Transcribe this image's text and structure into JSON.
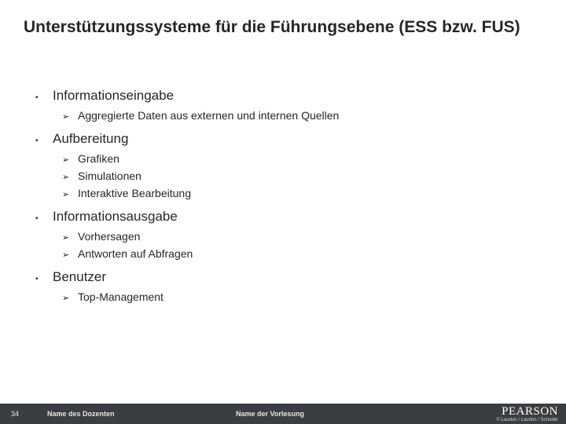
{
  "title": "Unterstützungssysteme für die Führungsebene (ESS bzw. FUS)",
  "sections": [
    {
      "heading": "Informationseingabe",
      "items": [
        "Aggregierte Daten aus externen und internen Quellen"
      ]
    },
    {
      "heading": "Aufbereitung",
      "items": [
        "Grafiken",
        "Simulationen",
        "Interaktive Bearbeitung"
      ]
    },
    {
      "heading": "Informationsausgabe",
      "items": [
        "Vorhersagen",
        "Antworten auf Abfragen"
      ]
    },
    {
      "heading": "Benutzer",
      "items": [
        "Top-Management"
      ]
    }
  ],
  "footer": {
    "slide_number": "34",
    "dozent": "Name des Dozenten",
    "vorlesung": "Name der Vorlesung",
    "logo": "PEARSON",
    "copyright": "© Laudon / Laudon / Schoder"
  },
  "colors": {
    "text": "#262626",
    "footer_bg": "#3b3e41",
    "footer_text": "#e6e6e6",
    "logo_text": "#ffffff"
  }
}
